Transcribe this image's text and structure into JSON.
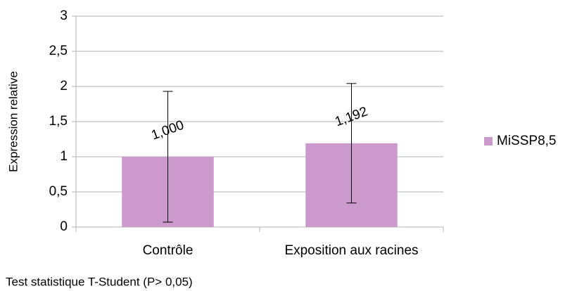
{
  "chart_data": {
    "type": "bar",
    "ylabel": "Expression relative",
    "categories": [
      "Contrôle",
      "Exposition aux racines"
    ],
    "series": [
      {
        "name": "MiSSP8,5",
        "color": "#cc99cc",
        "values": [
          1.0,
          1.192
        ],
        "value_labels": [
          "1,000",
          "1,192"
        ],
        "errors": [
          0.93,
          0.85
        ]
      }
    ],
    "ylim": [
      0,
      3
    ],
    "yticks": [
      0,
      {
        "value": 0.5,
        "label": "0,5"
      },
      1,
      {
        "value": 1.5,
        "label": "1,5"
      },
      2,
      {
        "value": 2.5,
        "label": "2,5"
      },
      3
    ],
    "grid": true,
    "legend": "right",
    "footnote": "Test statistique T-Student (P> 0,05)"
  }
}
